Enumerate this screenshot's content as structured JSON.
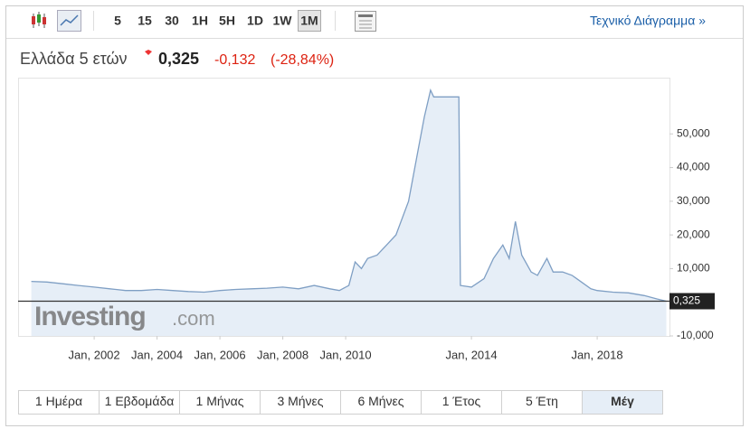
{
  "toolbar": {
    "intervals": [
      "5",
      "15",
      "30",
      "1H",
      "5H",
      "1D",
      "1W",
      "1M"
    ],
    "active_interval": 7,
    "link": "Τεχνικό Διάγραμμα »"
  },
  "header": {
    "name": "Ελλάδα 5 ετών",
    "price": "0,325",
    "change": "-0,132",
    "change_percent": "(-28,84%)"
  },
  "watermark": {
    "brand": "Investing",
    "suffix": ".com"
  },
  "chart_data": {
    "type": "area",
    "x": [
      2000.0,
      2000.5,
      2001.0,
      2001.5,
      2002.0,
      2002.5,
      2003.0,
      2003.5,
      2004.0,
      2004.5,
      2005.0,
      2005.5,
      2006.0,
      2006.5,
      2007.0,
      2007.5,
      2008.0,
      2008.5,
      2009.0,
      2009.5,
      2009.8,
      2010.1,
      2010.3,
      2010.5,
      2010.7,
      2011.0,
      2011.3,
      2011.6,
      2012.0,
      2012.3,
      2012.5,
      2012.7,
      2012.8,
      2013.6,
      2013.65,
      2014.0,
      2014.4,
      2014.7,
      2015.0,
      2015.2,
      2015.4,
      2015.6,
      2015.9,
      2016.1,
      2016.4,
      2016.6,
      2016.9,
      2017.2,
      2017.5,
      2017.8,
      2018.0,
      2018.5,
      2019.0,
      2019.5,
      2019.9,
      2020.2
    ],
    "series": [
      {
        "name": "Ελλάδα 5 ετών",
        "color": "#7f9fc4",
        "fill": "#e6eef7",
        "values": [
          6.2,
          6,
          5.5,
          5,
          4.5,
          4,
          3.5,
          3.5,
          3.8,
          3.5,
          3.2,
          3,
          3.5,
          3.8,
          4,
          4.2,
          4.5,
          4,
          5,
          4,
          3.5,
          5,
          12,
          10,
          13,
          14,
          17,
          20,
          30,
          45,
          55,
          63,
          61,
          61,
          5,
          4.5,
          7,
          13,
          17,
          13,
          24,
          14,
          9,
          8,
          13,
          9,
          9,
          8,
          6,
          4,
          3.5,
          3,
          2.8,
          2,
          1,
          0.325
        ]
      }
    ],
    "xlim": [
      1999.58,
      2020.3
    ],
    "xticks": [
      {
        "value": 2002,
        "label": "Jan, 2002"
      },
      {
        "value": 2004,
        "label": "Jan, 2004"
      },
      {
        "value": 2006,
        "label": "Jan, 2006"
      },
      {
        "value": 2008,
        "label": "Jan, 2008"
      },
      {
        "value": 2010,
        "label": "Jan, 2010"
      },
      {
        "value": 2014,
        "label": "Jan, 2014"
      },
      {
        "value": 2018,
        "label": "Jan, 2018"
      }
    ],
    "ylim": [
      -10,
      66.7
    ],
    "yticks": [
      {
        "value": -10,
        "label": "-10,000"
      },
      {
        "value": 10,
        "label": "10,000"
      },
      {
        "value": 20,
        "label": "20,000"
      },
      {
        "value": 30,
        "label": "30,000"
      },
      {
        "value": 40,
        "label": "40,000"
      },
      {
        "value": 50,
        "label": "50,000"
      }
    ]
  },
  "ranges": {
    "tabs": [
      "1 Ημέρα",
      "1 Εβδομάδα",
      "1 Μήνας",
      "3 Μήνες",
      "6 Μήνες",
      "1 Έτος",
      "5 Έτη",
      "Μέγ"
    ],
    "active": 7
  }
}
